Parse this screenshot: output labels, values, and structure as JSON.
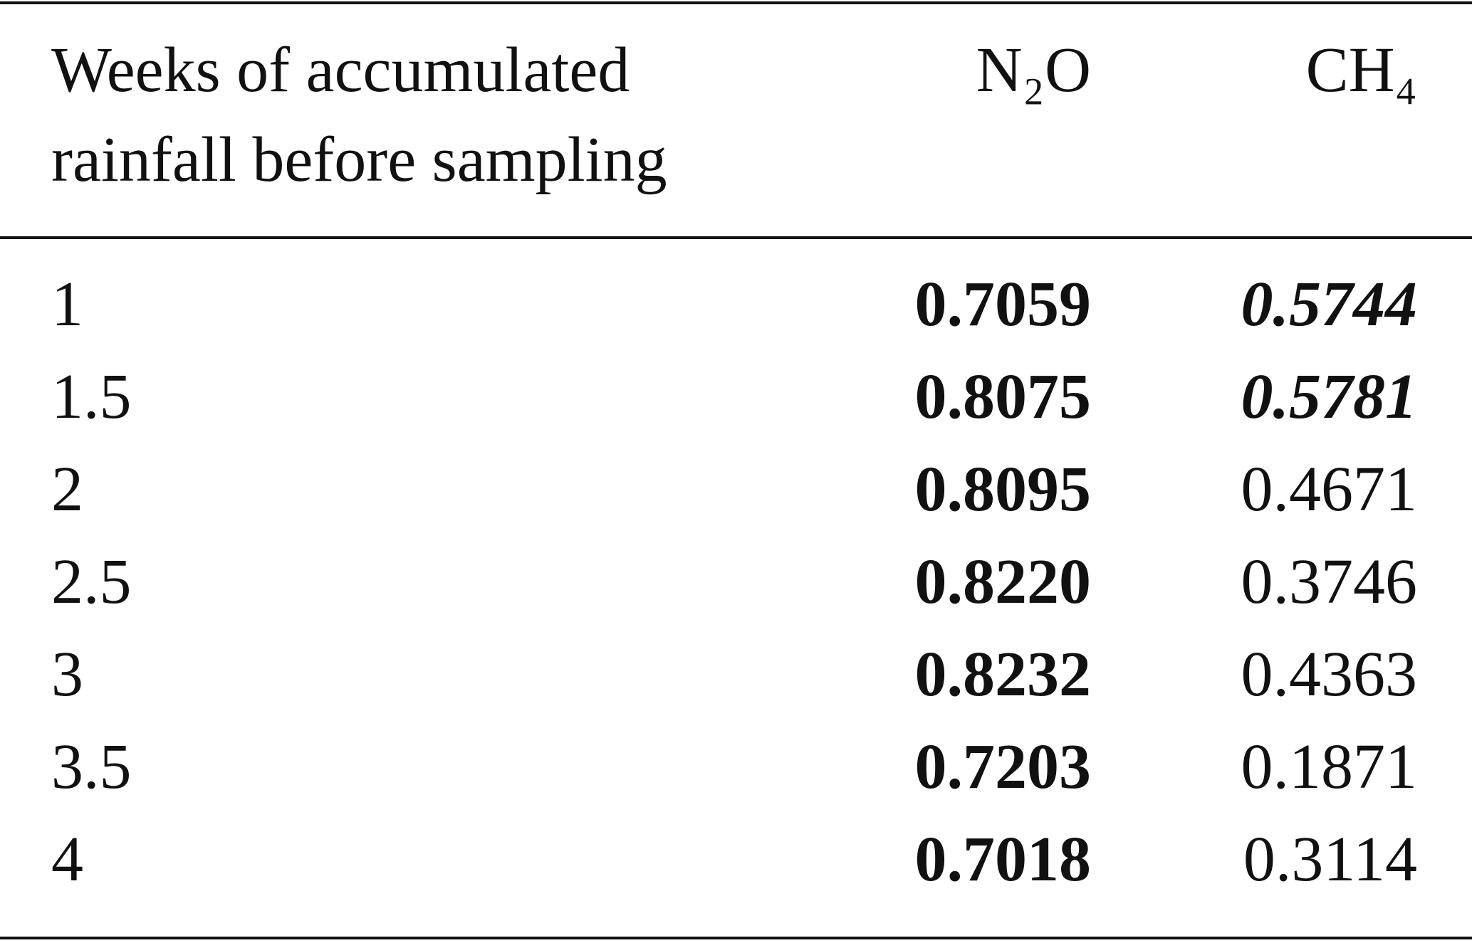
{
  "table": {
    "header": [
      "Weeks of accumulated rainfall before sampling",
      "N₂O",
      "CH₄"
    ],
    "rows": [
      [
        "1",
        "0.7059",
        "0.5744"
      ],
      [
        "1.5",
        "0.8075",
        "0.5781"
      ],
      [
        "2",
        "0.8095",
        "0.4671"
      ],
      [
        "2.5",
        "0.8220",
        "0.3746"
      ],
      [
        "3",
        "0.8232",
        "0.4363"
      ],
      [
        "3.5",
        "0.7203",
        "0.1871"
      ],
      [
        "4",
        "0.7018",
        "0.3114"
      ]
    ]
  }
}
